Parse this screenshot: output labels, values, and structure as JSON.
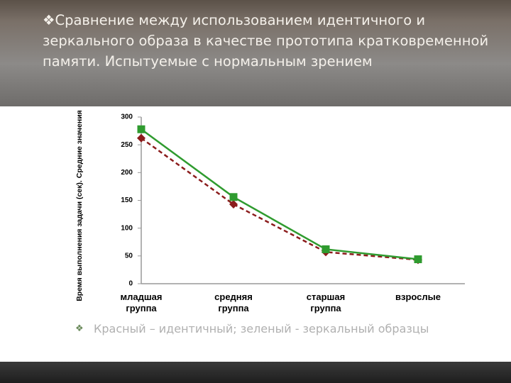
{
  "slide_title": "Сравнение между использованием идентичного и зеркального образа в качестве прототипа кратковременной памяти. Испытуемые с нормальным зрением",
  "caption": "Красный – идентичный; зеленый - зеркальный образцы",
  "chart_data": {
    "type": "line",
    "y_label": "Время выполнения задачи (сек). Средние значения",
    "categories": [
      "младшая группа",
      "средняя группа",
      "старшая группа",
      "взрослые"
    ],
    "series": [
      {
        "color": "#8b1c1c",
        "marker": "diamond",
        "dashed": true,
        "values": [
          262,
          143,
          57,
          43
        ]
      },
      {
        "color": "#2f9b2f",
        "marker": "square",
        "dashed": false,
        "values": [
          278,
          156,
          62,
          44
        ]
      }
    ],
    "ylim": [
      0,
      300
    ],
    "yticks": [
      0,
      50,
      100,
      150,
      200,
      250,
      300
    ],
    "grid": false
  }
}
